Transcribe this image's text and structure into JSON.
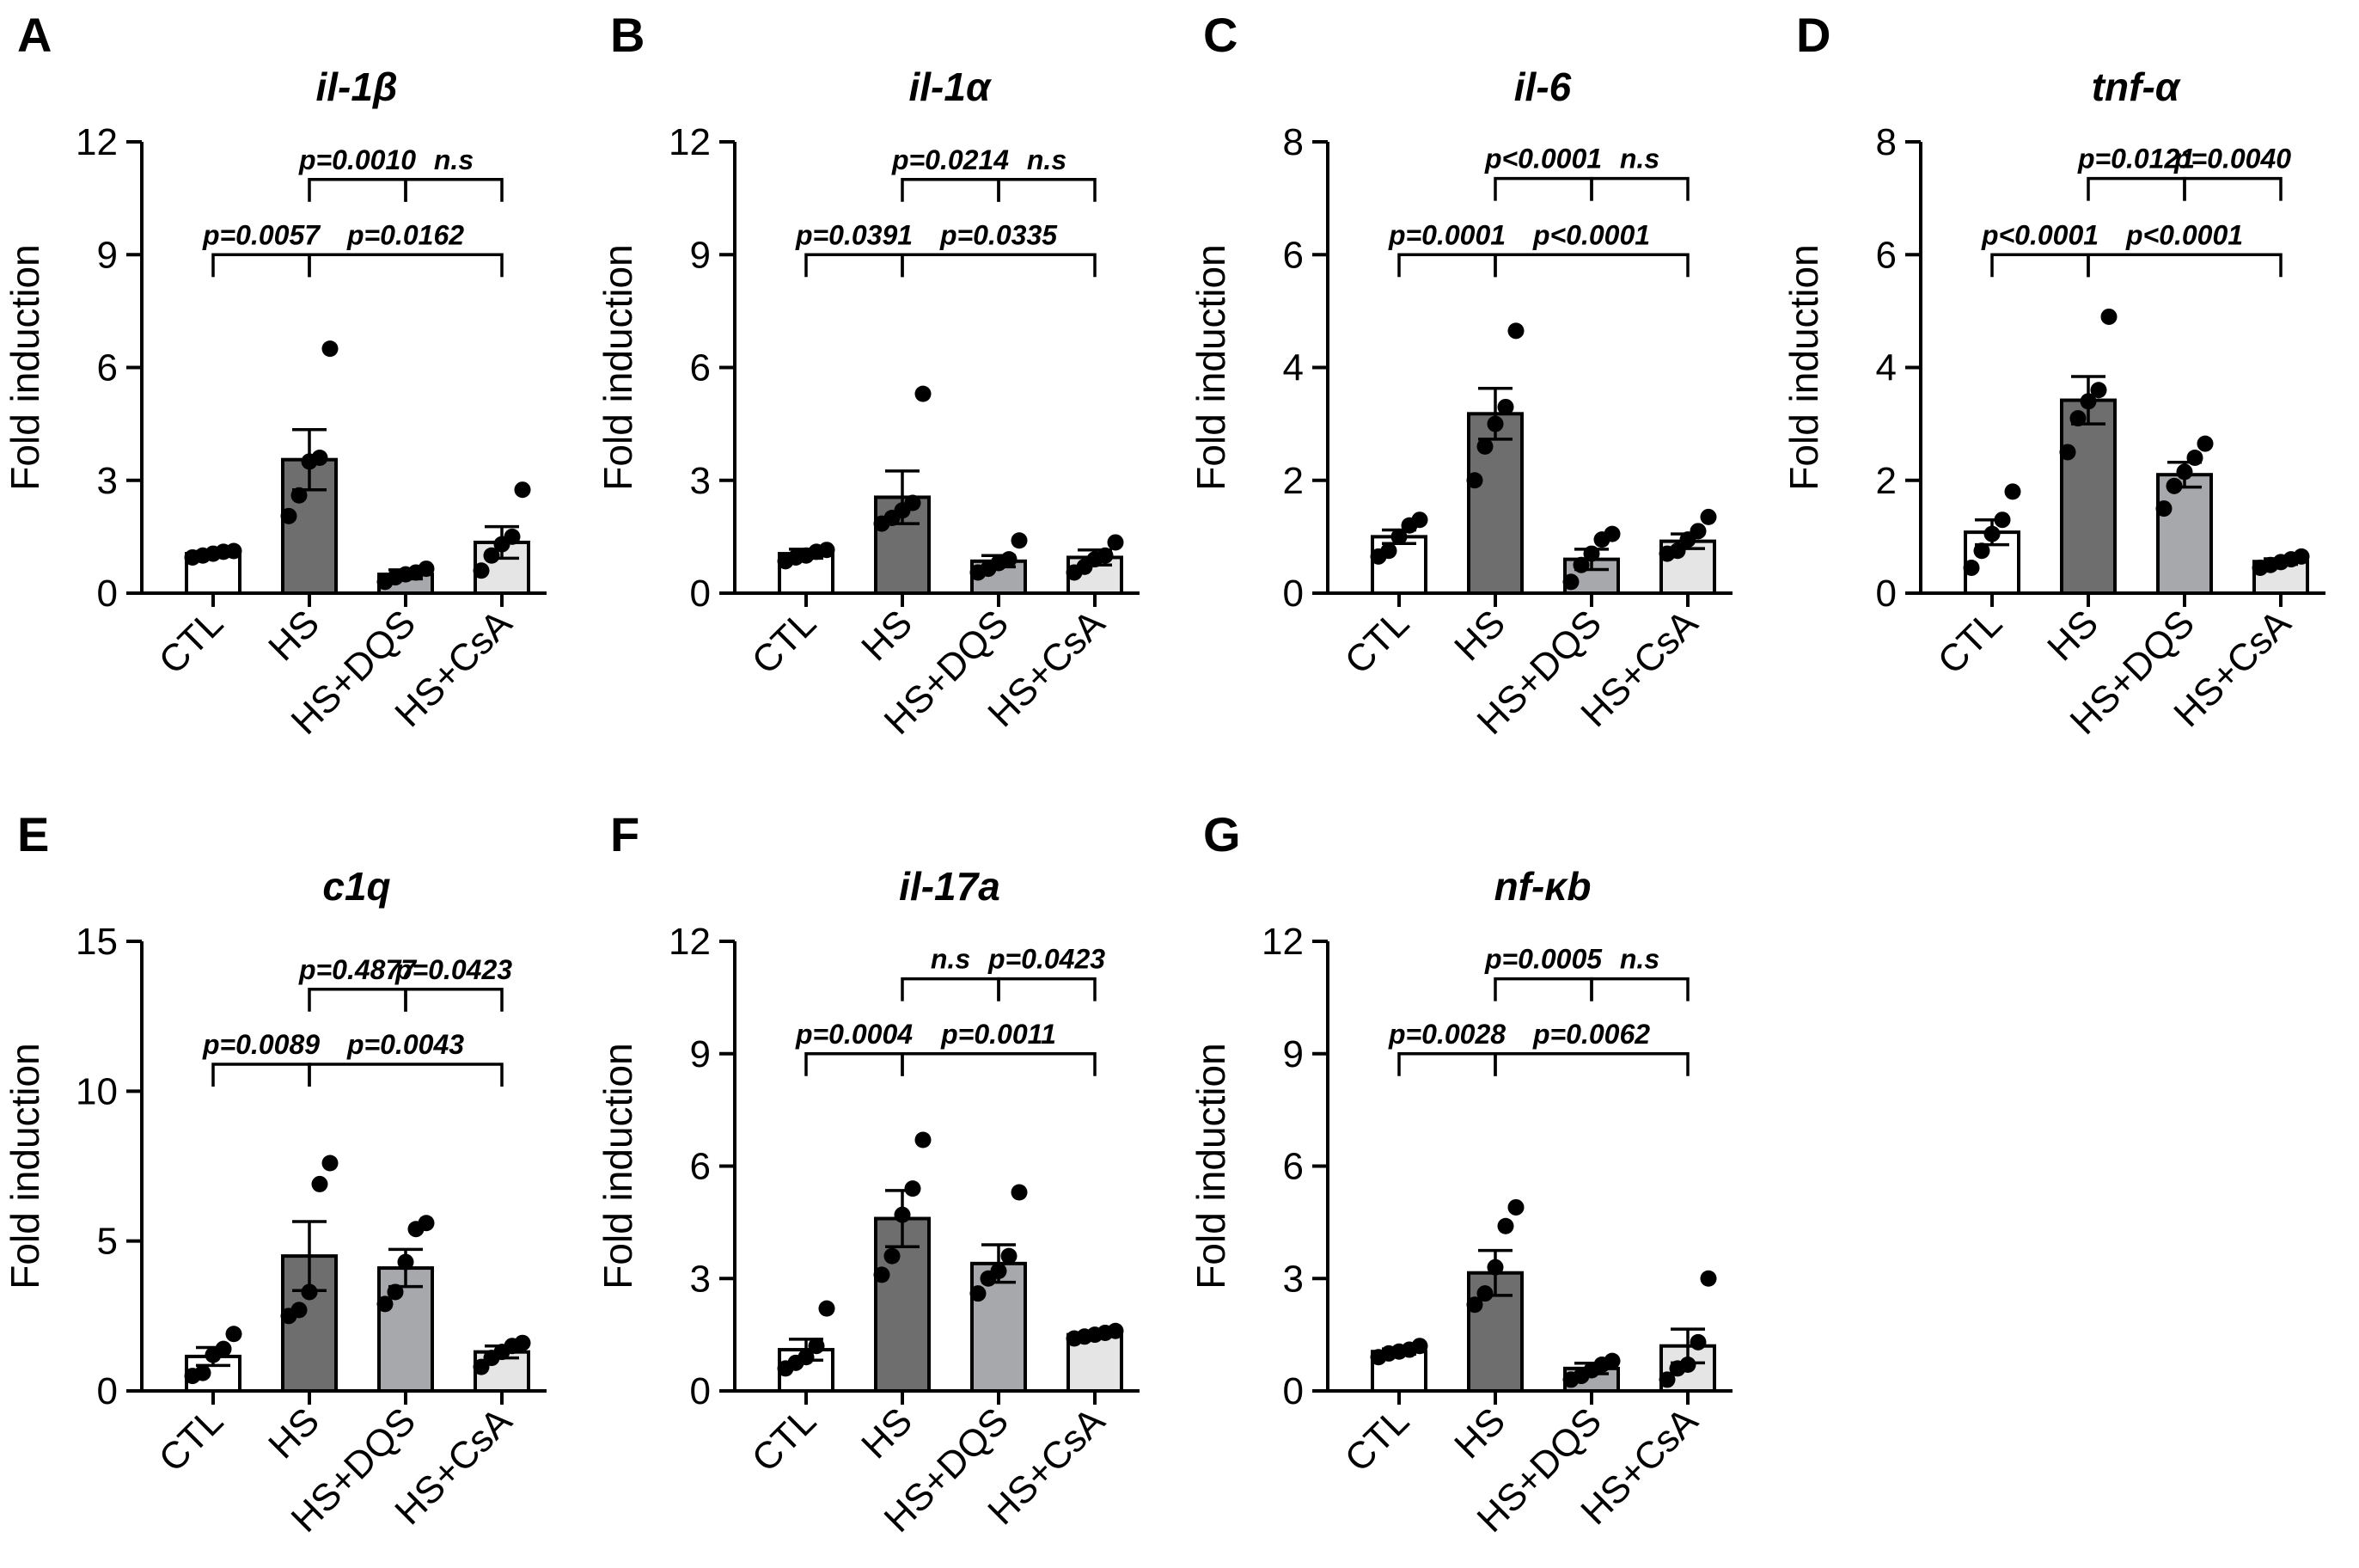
{
  "figure": {
    "categories": [
      "CTL",
      "HS",
      "HS+DQS",
      "HS+CsA"
    ],
    "bar_colors": [
      "#ffffff",
      "#6e6e6e",
      "#a7a8ab",
      "#e5e5e5"
    ],
    "ylabel": "Fold induction"
  },
  "chart_data": [
    {
      "type": "bar",
      "panel": "A",
      "title": "il-1β",
      "ylabel": "Fold induction",
      "categories": [
        "CTL",
        "HS",
        "HS+DQS",
        "HS+CsA"
      ],
      "ylim": [
        0,
        12
      ],
      "yticks": [
        "0",
        "3",
        "6",
        "9",
        "12"
      ],
      "values": [
        1.05,
        3.55,
        0.5,
        1.35
      ],
      "sem": [
        0.06,
        0.8,
        0.12,
        0.42
      ],
      "points": [
        [
          0.95,
          1.0,
          1.05,
          1.1,
          1.12
        ],
        [
          2.05,
          2.6,
          3.5,
          3.6,
          6.5
        ],
        [
          0.3,
          0.42,
          0.5,
          0.55,
          0.65
        ],
        [
          0.6,
          1.0,
          1.3,
          1.5,
          2.75
        ]
      ],
      "comparisons": [
        {
          "from": 0,
          "to": 1,
          "y": 9.0,
          "label": "p=0.0057"
        },
        {
          "from": 1,
          "to": 3,
          "y": 9.0,
          "label": "p=0.0162"
        },
        {
          "from": 1,
          "to": 2,
          "y": 11.0,
          "label": "p=0.0010"
        },
        {
          "from": 2,
          "to": 3,
          "y": 11.0,
          "label": "n.s"
        }
      ]
    },
    {
      "type": "bar",
      "panel": "B",
      "title": "il-1α",
      "ylabel": "Fold induction",
      "categories": [
        "CTL",
        "HS",
        "HS+DQS",
        "HS+CsA"
      ],
      "ylim": [
        0,
        12
      ],
      "yticks": [
        "0",
        "3",
        "6",
        "9",
        "12"
      ],
      "values": [
        1.05,
        2.55,
        0.85,
        0.95
      ],
      "sem": [
        0.12,
        0.7,
        0.15,
        0.2
      ],
      "points": [
        [
          0.85,
          0.95,
          1.0,
          1.1,
          1.15
        ],
        [
          1.85,
          2.0,
          2.2,
          2.4,
          5.3
        ],
        [
          0.55,
          0.65,
          0.8,
          0.9,
          1.4
        ],
        [
          0.55,
          0.7,
          0.9,
          1.0,
          1.35
        ]
      ],
      "comparisons": [
        {
          "from": 0,
          "to": 1,
          "y": 9.0,
          "label": "p=0.0391"
        },
        {
          "from": 1,
          "to": 3,
          "y": 9.0,
          "label": "p=0.0335"
        },
        {
          "from": 1,
          "to": 2,
          "y": 11.0,
          "label": "p=0.0214"
        },
        {
          "from": 2,
          "to": 3,
          "y": 11.0,
          "label": "n.s"
        }
      ]
    },
    {
      "type": "bar",
      "panel": "C",
      "title": "il-6",
      "ylabel": "Fold induction",
      "categories": [
        "CTL",
        "HS",
        "HS+DQS",
        "HS+CsA"
      ],
      "ylim": [
        0,
        8
      ],
      "yticks": [
        "0",
        "2",
        "4",
        "6",
        "8"
      ],
      "values": [
        1.0,
        3.18,
        0.6,
        0.92
      ],
      "sem": [
        0.12,
        0.45,
        0.18,
        0.13
      ],
      "points": [
        [
          0.65,
          0.75,
          1.0,
          1.2,
          1.3
        ],
        [
          2.0,
          2.6,
          3.0,
          3.3,
          4.65
        ],
        [
          0.2,
          0.5,
          0.7,
          0.95,
          1.05
        ],
        [
          0.7,
          0.75,
          0.95,
          1.1,
          1.35
        ]
      ],
      "comparisons": [
        {
          "from": 0,
          "to": 1,
          "y": 6.0,
          "label": "p=0.0001"
        },
        {
          "from": 1,
          "to": 3,
          "y": 6.0,
          "label": "p<0.0001"
        },
        {
          "from": 1,
          "to": 2,
          "y": 7.35,
          "label": "p<0.0001"
        },
        {
          "from": 2,
          "to": 3,
          "y": 7.35,
          "label": "n.s"
        }
      ]
    },
    {
      "type": "bar",
      "panel": "D",
      "title": "tnf-α",
      "ylabel": "Fold induction",
      "categories": [
        "CTL",
        "HS",
        "HS+DQS",
        "HS+CsA"
      ],
      "ylim": [
        0,
        8
      ],
      "yticks": [
        "0",
        "2",
        "4",
        "6",
        "8"
      ],
      "values": [
        1.08,
        3.42,
        2.1,
        0.56
      ],
      "sem": [
        0.22,
        0.42,
        0.22,
        0.05
      ],
      "points": [
        [
          0.45,
          0.75,
          1.05,
          1.3,
          1.8
        ],
        [
          2.5,
          3.1,
          3.4,
          3.6,
          4.9
        ],
        [
          1.5,
          1.9,
          2.15,
          2.4,
          2.65
        ],
        [
          0.45,
          0.5,
          0.55,
          0.6,
          0.65
        ]
      ],
      "comparisons": [
        {
          "from": 0,
          "to": 1,
          "y": 6.0,
          "label": "p<0.0001"
        },
        {
          "from": 1,
          "to": 3,
          "y": 6.0,
          "label": "p<0.0001"
        },
        {
          "from": 1,
          "to": 2,
          "y": 7.35,
          "label": "p=0.0121"
        },
        {
          "from": 2,
          "to": 3,
          "y": 7.35,
          "label": "p=0.0040"
        }
      ]
    },
    {
      "type": "bar",
      "panel": "E",
      "title": "c1q",
      "ylabel": "Fold induction",
      "categories": [
        "CTL",
        "HS",
        "HS+DQS",
        "HS+CsA"
      ],
      "ylim": [
        0,
        15
      ],
      "yticks": [
        "0",
        "5",
        "10",
        "15"
      ],
      "values": [
        1.15,
        4.5,
        4.1,
        1.3
      ],
      "sem": [
        0.3,
        1.15,
        0.62,
        0.2
      ],
      "points": [
        [
          0.5,
          0.6,
          1.2,
          1.4,
          1.9
        ],
        [
          2.5,
          2.7,
          3.3,
          6.9,
          7.6
        ],
        [
          2.9,
          3.3,
          4.3,
          5.4,
          5.6
        ],
        [
          0.8,
          1.1,
          1.3,
          1.5,
          1.6
        ]
      ],
      "comparisons": [
        {
          "from": 0,
          "to": 1,
          "y": 10.9,
          "label": "p=0.0089"
        },
        {
          "from": 1,
          "to": 3,
          "y": 10.9,
          "label": "p=0.0043"
        },
        {
          "from": 1,
          "to": 2,
          "y": 13.4,
          "label": "p=0.4877"
        },
        {
          "from": 2,
          "to": 3,
          "y": 13.4,
          "label": "p=0.0423"
        }
      ]
    },
    {
      "type": "bar",
      "panel": "F",
      "title": "il-17a",
      "ylabel": "Fold induction",
      "categories": [
        "CTL",
        "HS",
        "HS+DQS",
        "HS+CsA"
      ],
      "ylim": [
        0,
        12
      ],
      "yticks": [
        "0",
        "3",
        "6",
        "9",
        "12"
      ],
      "values": [
        1.1,
        4.6,
        3.4,
        1.5
      ],
      "sem": [
        0.28,
        0.75,
        0.5,
        0.05
      ],
      "points": [
        [
          0.6,
          0.75,
          0.9,
          1.2,
          2.2
        ],
        [
          3.1,
          3.6,
          4.7,
          5.4,
          6.7
        ],
        [
          2.6,
          3.0,
          3.2,
          3.6,
          5.3
        ],
        [
          1.4,
          1.45,
          1.5,
          1.55,
          1.6
        ]
      ],
      "comparisons": [
        {
          "from": 0,
          "to": 1,
          "y": 9.0,
          "label": "p=0.0004"
        },
        {
          "from": 1,
          "to": 3,
          "y": 9.0,
          "label": "p=0.0011"
        },
        {
          "from": 1,
          "to": 2,
          "y": 11.0,
          "label": "n.s"
        },
        {
          "from": 2,
          "to": 3,
          "y": 11.0,
          "label": "p=0.0423"
        }
      ]
    },
    {
      "type": "bar",
      "panel": "G",
      "title": "nf-κb",
      "ylabel": "Fold induction",
      "categories": [
        "CTL",
        "HS",
        "HS+DQS",
        "HS+CsA"
      ],
      "ylim": [
        0,
        12
      ],
      "yticks": [
        "0",
        "3",
        "6",
        "9",
        "12"
      ],
      "values": [
        1.05,
        3.15,
        0.6,
        1.2
      ],
      "sem": [
        0.07,
        0.6,
        0.14,
        0.45
      ],
      "points": [
        [
          0.9,
          1.0,
          1.05,
          1.1,
          1.2
        ],
        [
          2.3,
          2.6,
          3.3,
          4.4,
          4.9
        ],
        [
          0.3,
          0.4,
          0.55,
          0.7,
          0.8
        ],
        [
          0.3,
          0.6,
          0.7,
          1.3,
          3.0
        ]
      ],
      "comparisons": [
        {
          "from": 0,
          "to": 1,
          "y": 9.0,
          "label": "p=0.0028"
        },
        {
          "from": 1,
          "to": 3,
          "y": 9.0,
          "label": "p=0.0062"
        },
        {
          "from": 1,
          "to": 2,
          "y": 11.0,
          "label": "p=0.0005"
        },
        {
          "from": 2,
          "to": 3,
          "y": 11.0,
          "label": "n.s"
        }
      ]
    }
  ]
}
